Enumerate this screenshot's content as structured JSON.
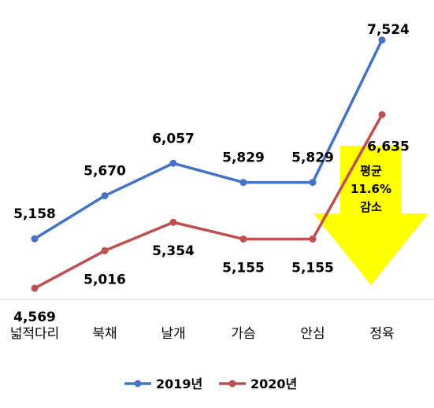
{
  "chart_data": {
    "type": "line",
    "categories": [
      "넓적다리",
      "북채",
      "날개",
      "가슴",
      "안심",
      "정육"
    ],
    "series": [
      {
        "name": "2019년",
        "color": "#4472C4",
        "values": [
          5158,
          5670,
          6057,
          5829,
          5829,
          7524
        ]
      },
      {
        "name": "2020년",
        "color": "#C0504D",
        "values": [
          4569,
          5016,
          5354,
          5155,
          5155,
          6635
        ]
      }
    ],
    "value_labels": {
      "2019년": [
        "5,158",
        "5,670",
        "6,057",
        "5,829",
        "5,829",
        "7,524"
      ],
      "2020년": [
        "4,569",
        "5,016",
        "5,354",
        "5,155",
        "5,155",
        "6,635"
      ]
    },
    "annotation": {
      "lines": [
        "평균",
        "11.6%",
        "감소"
      ],
      "arrow_color": "#FFFF00"
    },
    "legend": {
      "position": "bottom"
    },
    "ylim": [
      3500,
      8000
    ],
    "grid": false
  }
}
